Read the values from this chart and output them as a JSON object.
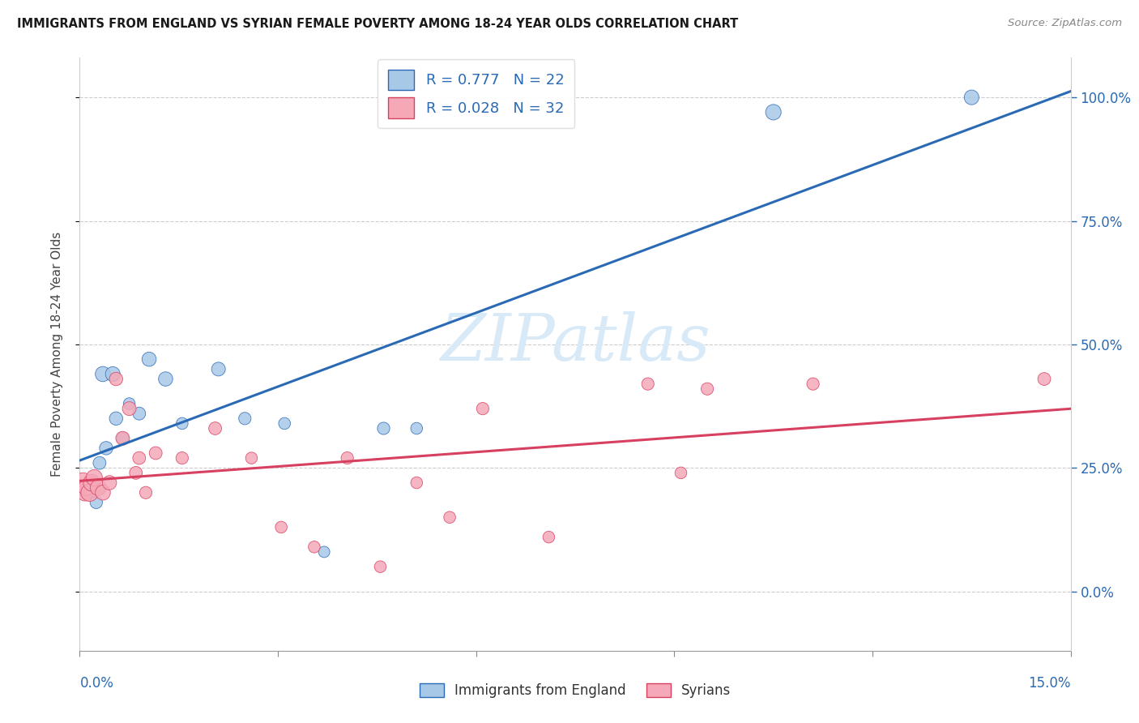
{
  "title": "IMMIGRANTS FROM ENGLAND VS SYRIAN FEMALE POVERTY AMONG 18-24 YEAR OLDS CORRELATION CHART",
  "source": "Source: ZipAtlas.com",
  "ylabel": "Female Poverty Among 18-24 Year Olds",
  "ylabel_right_ticks": [
    0,
    25,
    50,
    75,
    100
  ],
  "ylabel_right_labels": [
    "0.0%",
    "25.0%",
    "50.0%",
    "75.0%",
    "100.0%"
  ],
  "xlim": [
    0.0,
    15.0
  ],
  "ylim": [
    -12.0,
    108.0
  ],
  "r_england": 0.777,
  "n_england": 22,
  "r_syrian": 0.028,
  "n_syrian": 32,
  "legend_label1": "Immigrants from England",
  "legend_label2": "Syrians",
  "color_england": "#a8c8e8",
  "color_syrian": "#f4a8b8",
  "line_color_england": "#2a6ab5",
  "line_color_syrian": "#d84060",
  "watermark_text": "ZIPatlas",
  "watermark_color": "#d8eaf8",
  "england_x": [
    0.1,
    0.2,
    0.25,
    0.3,
    0.35,
    0.4,
    0.5,
    0.55,
    0.65,
    0.75,
    0.9,
    1.05,
    1.3,
    1.55,
    2.1,
    2.5,
    3.1,
    3.7,
    4.6,
    5.1,
    10.5,
    13.5
  ],
  "england_y": [
    20,
    22,
    18,
    26,
    44,
    29,
    44,
    35,
    31,
    38,
    36,
    47,
    43,
    34,
    45,
    35,
    34,
    8,
    33,
    33,
    97,
    100
  ],
  "england_sizes": [
    130,
    100,
    120,
    130,
    180,
    140,
    170,
    140,
    120,
    110,
    130,
    160,
    160,
    110,
    150,
    120,
    110,
    100,
    120,
    110,
    190,
    170
  ],
  "syrian_x": [
    0.05,
    0.08,
    0.1,
    0.15,
    0.18,
    0.22,
    0.28,
    0.35,
    0.45,
    0.55,
    0.65,
    0.75,
    0.85,
    0.9,
    1.0,
    1.15,
    1.55,
    2.05,
    2.6,
    3.05,
    3.55,
    4.05,
    4.55,
    5.1,
    5.6,
    6.1,
    7.1,
    8.6,
    9.1,
    9.5,
    11.1,
    14.6
  ],
  "syrian_y": [
    22,
    20,
    21,
    20,
    22,
    23,
    21,
    20,
    22,
    43,
    31,
    37,
    24,
    27,
    20,
    28,
    27,
    33,
    27,
    13,
    9,
    27,
    5,
    22,
    15,
    37,
    11,
    42,
    24,
    41,
    42,
    43
  ],
  "syrian_sizes": [
    310,
    220,
    200,
    240,
    220,
    210,
    200,
    180,
    160,
    140,
    150,
    150,
    130,
    130,
    120,
    130,
    120,
    130,
    110,
    110,
    110,
    120,
    110,
    110,
    110,
    120,
    110,
    120,
    110,
    120,
    120,
    130
  ],
  "background_color": "#ffffff",
  "grid_color": "#cccccc",
  "grid_y_values": [
    0,
    25,
    50,
    75,
    100
  ]
}
